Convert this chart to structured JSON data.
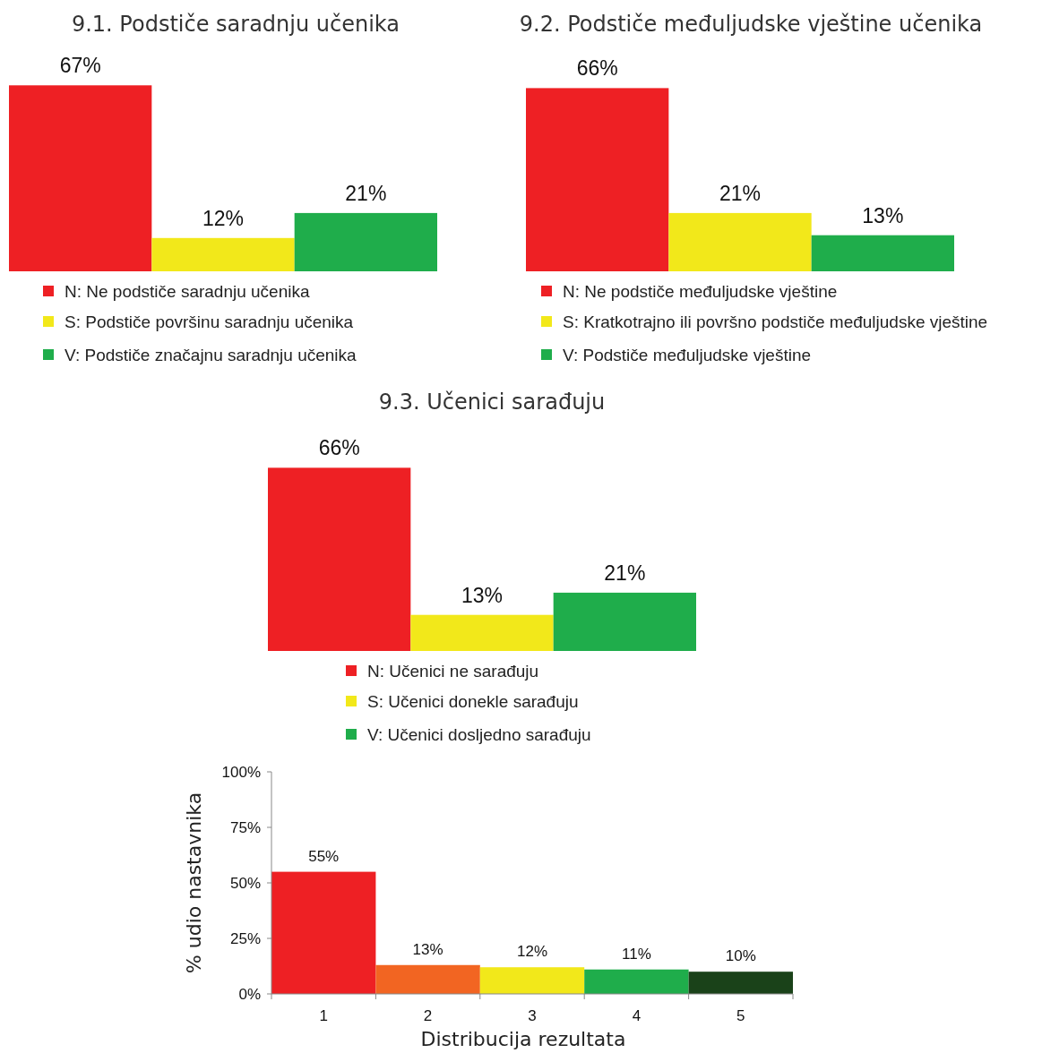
{
  "chart_data": [
    {
      "type": "bar",
      "title": "9.1. Podstiče saradnju učenika",
      "categories": [
        null
      ],
      "series": [
        {
          "name": "N: Ne podstiče saradnju učenika",
          "color": "#ee2024",
          "values": [
            67
          ],
          "value_labels": [
            "67%"
          ]
        },
        {
          "name": "S: Podstiče površinu saradnju učenika",
          "color": "#f2e81a",
          "values": [
            12
          ],
          "value_labels": [
            "12%"
          ]
        },
        {
          "name": "V: Podstiče značajnu saradnju učenika",
          "color": "#1fad4b",
          "values": [
            21
          ],
          "value_labels": [
            "21%"
          ]
        }
      ],
      "legend": "bottom",
      "tick_labels": false
    },
    {
      "type": "bar",
      "title": "9.2. Podstiče međuljudske vještine učenika",
      "categories": [
        null
      ],
      "series": [
        {
          "name": "N: Ne podstiče međuljudske vještine",
          "color": "#ee2024",
          "values": [
            66
          ],
          "value_labels": [
            "66%"
          ]
        },
        {
          "name": "S: Kratkotrajno ili površno podstiče međuljudske vještine",
          "color": "#f2e81a",
          "values": [
            21
          ],
          "value_labels": [
            "21%"
          ]
        },
        {
          "name": "V: Podstiče međuljudske vještine",
          "color": "#1fad4b",
          "values": [
            13
          ],
          "value_labels": [
            "13%"
          ]
        }
      ],
      "legend": "bottom",
      "tick_labels": false
    },
    {
      "type": "bar",
      "title": "9.3. Učenici sarađuju",
      "categories": [
        null
      ],
      "series": [
        {
          "name": "N: Učenici ne sarađuju",
          "color": "#ee2024",
          "values": [
            66
          ],
          "value_labels": [
            "66%"
          ]
        },
        {
          "name": "S: Učenici donekle sarađuju",
          "color": "#f2e81a",
          "values": [
            13
          ],
          "value_labels": [
            "13%"
          ]
        },
        {
          "name": "V: Učenici dosljedno sarađuju",
          "color": "#1fad4b",
          "values": [
            21
          ],
          "value_labels": [
            "21%"
          ]
        }
      ],
      "legend": "bottom",
      "tick_labels": false
    },
    {
      "type": "bar",
      "xlabel": "Distribucija rezultata",
      "ylabel": "% udio nastavnika",
      "categories": [
        "1",
        "2",
        "3",
        "4",
        "5"
      ],
      "values": [
        55,
        13,
        12,
        11,
        10
      ],
      "colors": [
        "#ee2024",
        "#f26522",
        "#f2e81a",
        "#1fad4b",
        "#1a4219"
      ],
      "value_labels": [
        "55%",
        "13%",
        "12%",
        "11%",
        "10%"
      ],
      "ylim": [
        0,
        100
      ],
      "yticks": [
        {
          "value": 0,
          "label": "0%"
        },
        {
          "value": 25,
          "label": "25%"
        },
        {
          "value": 50,
          "label": "50%"
        },
        {
          "value": 75,
          "label": "75%"
        },
        {
          "value": 100,
          "label": "100%"
        }
      ]
    }
  ]
}
